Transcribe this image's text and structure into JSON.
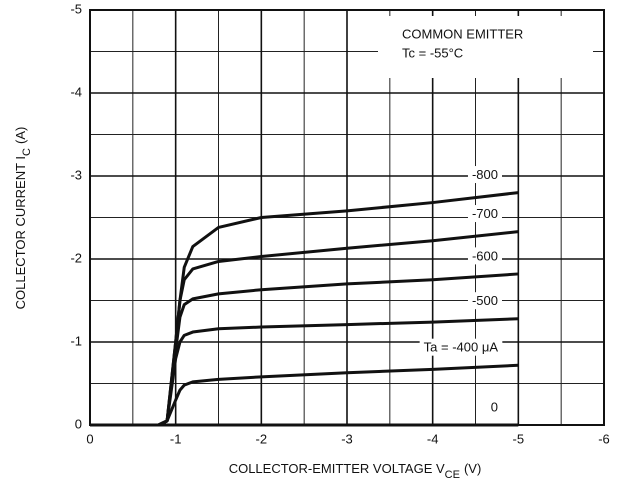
{
  "chart_data": {
    "type": "line",
    "annotations": [
      "COMMON EMITTER",
      "Tc = -55°C"
    ],
    "xlabel": {
      "text": "COLLECTOR-EMITTER VOLTAGE V",
      "sub": "CE",
      "unit": "(V)"
    },
    "ylabel": {
      "text": "COLLECTOR CURRENT I",
      "sub": "C",
      "unit": "(A)"
    },
    "x": [
      0,
      -0.8,
      -0.9,
      -1.0,
      -1.05,
      -1.1,
      -1.2,
      -1.5,
      -2,
      -3,
      -4,
      -5
    ],
    "series": [
      {
        "name": "-800",
        "color": "#111111",
        "values": [
          0,
          0,
          -0.05,
          -1.0,
          -1.5,
          -1.9,
          -2.15,
          -2.38,
          -2.5,
          -2.58,
          -2.68,
          -2.8
        ]
      },
      {
        "name": "-700",
        "color": "#111111",
        "values": [
          0,
          0,
          -0.05,
          -1.0,
          -1.5,
          -1.75,
          -1.88,
          -1.97,
          -2.03,
          -2.13,
          -2.22,
          -2.33
        ]
      },
      {
        "name": "-600",
        "color": "#111111",
        "values": [
          0,
          0,
          -0.05,
          -0.9,
          -1.3,
          -1.45,
          -1.52,
          -1.58,
          -1.63,
          -1.7,
          -1.75,
          -1.82
        ]
      },
      {
        "name": "-500",
        "color": "#111111",
        "values": [
          0,
          0,
          -0.05,
          -0.8,
          -1.0,
          -1.08,
          -1.12,
          -1.16,
          -1.18,
          -1.21,
          -1.24,
          -1.28
        ]
      },
      {
        "name": "Ta = -400 μA",
        "color": "#111111",
        "values": [
          0,
          0,
          -0.05,
          -0.3,
          -0.42,
          -0.48,
          -0.52,
          -0.55,
          -0.58,
          -0.63,
          -0.67,
          -0.72
        ]
      },
      {
        "name": "0",
        "color": "#111111",
        "values": [
          0,
          0,
          0,
          0,
          0,
          0,
          0,
          0,
          0,
          0,
          0,
          0
        ]
      }
    ],
    "xlim": [
      0,
      -6
    ],
    "xticks": [
      0,
      -1,
      -2,
      -3,
      -4,
      -5,
      -6
    ],
    "xminorticks": [
      -0.5,
      -1.5,
      -2.5,
      -3.5,
      -4.5,
      -5.5
    ],
    "ylim": [
      0,
      -5
    ],
    "yticks": [
      0,
      -1,
      -2,
      -3,
      -4,
      -5
    ],
    "yminorticks": [
      -0.5,
      -1.5,
      -2.5,
      -3.5,
      -4.5
    ],
    "grid": true
  }
}
